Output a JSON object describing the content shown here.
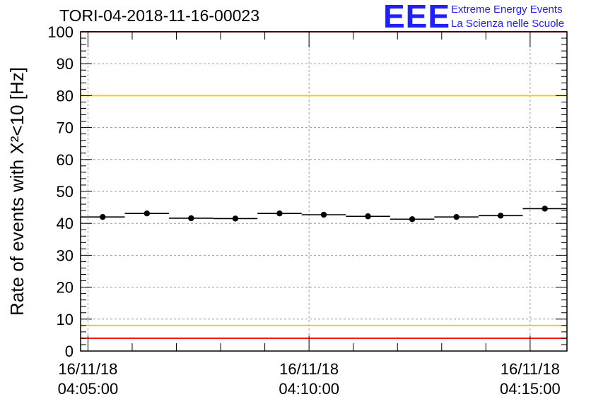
{
  "header": {
    "title": "TORI-04-2018-11-16-00023"
  },
  "logo": {
    "mark": "EEE",
    "line1": "Extreme Energy Events",
    "line2": "La Scienza nelle Scuole",
    "color": "#1f1fff"
  },
  "chart_data": {
    "type": "scatter",
    "title": "TORI-04-2018-11-16-00023",
    "ylabel": "Rate of events with X²<10 [Hz]",
    "xlabel": "",
    "ylim": [
      0,
      100
    ],
    "yticks": [
      0,
      10,
      20,
      30,
      40,
      50,
      60,
      70,
      80,
      90,
      100
    ],
    "xlim": [
      "04:04:50",
      "04:15:50"
    ],
    "xticks": [
      {
        "time": "04:05:00",
        "date": "16/11/18"
      },
      {
        "time": "04:10:00",
        "date": "16/11/18"
      },
      {
        "time": "04:15:00",
        "date": "16/11/18"
      }
    ],
    "grid": true,
    "series": [
      {
        "marker_color": "#000000",
        "points": [
          {
            "x_start": "04:04:50",
            "x_end": "04:05:50",
            "y": 42.0
          },
          {
            "x_start": "04:05:50",
            "x_end": "04:06:50",
            "y": 43.1
          },
          {
            "x_start": "04:06:50",
            "x_end": "04:07:50",
            "y": 41.6
          },
          {
            "x_start": "04:07:50",
            "x_end": "04:08:50",
            "y": 41.5
          },
          {
            "x_start": "04:08:50",
            "x_end": "04:09:50",
            "y": 43.1
          },
          {
            "x_start": "04:09:50",
            "x_end": "04:10:50",
            "y": 42.7
          },
          {
            "x_start": "04:10:50",
            "x_end": "04:11:50",
            "y": 42.2
          },
          {
            "x_start": "04:11:50",
            "x_end": "04:12:50",
            "y": 41.3
          },
          {
            "x_start": "04:12:50",
            "x_end": "04:13:50",
            "y": 42.0
          },
          {
            "x_start": "04:13:50",
            "x_end": "04:14:50",
            "y": 42.4
          },
          {
            "x_start": "04:14:50",
            "x_end": "04:15:50",
            "y": 44.6
          }
        ]
      }
    ],
    "reference_lines": [
      {
        "y": 100,
        "color": "#ff0000"
      },
      {
        "y": 80,
        "color": "#ffcc00"
      },
      {
        "y": 8,
        "color": "#ffcc00"
      },
      {
        "y": 4,
        "color": "#ff0000"
      }
    ]
  }
}
